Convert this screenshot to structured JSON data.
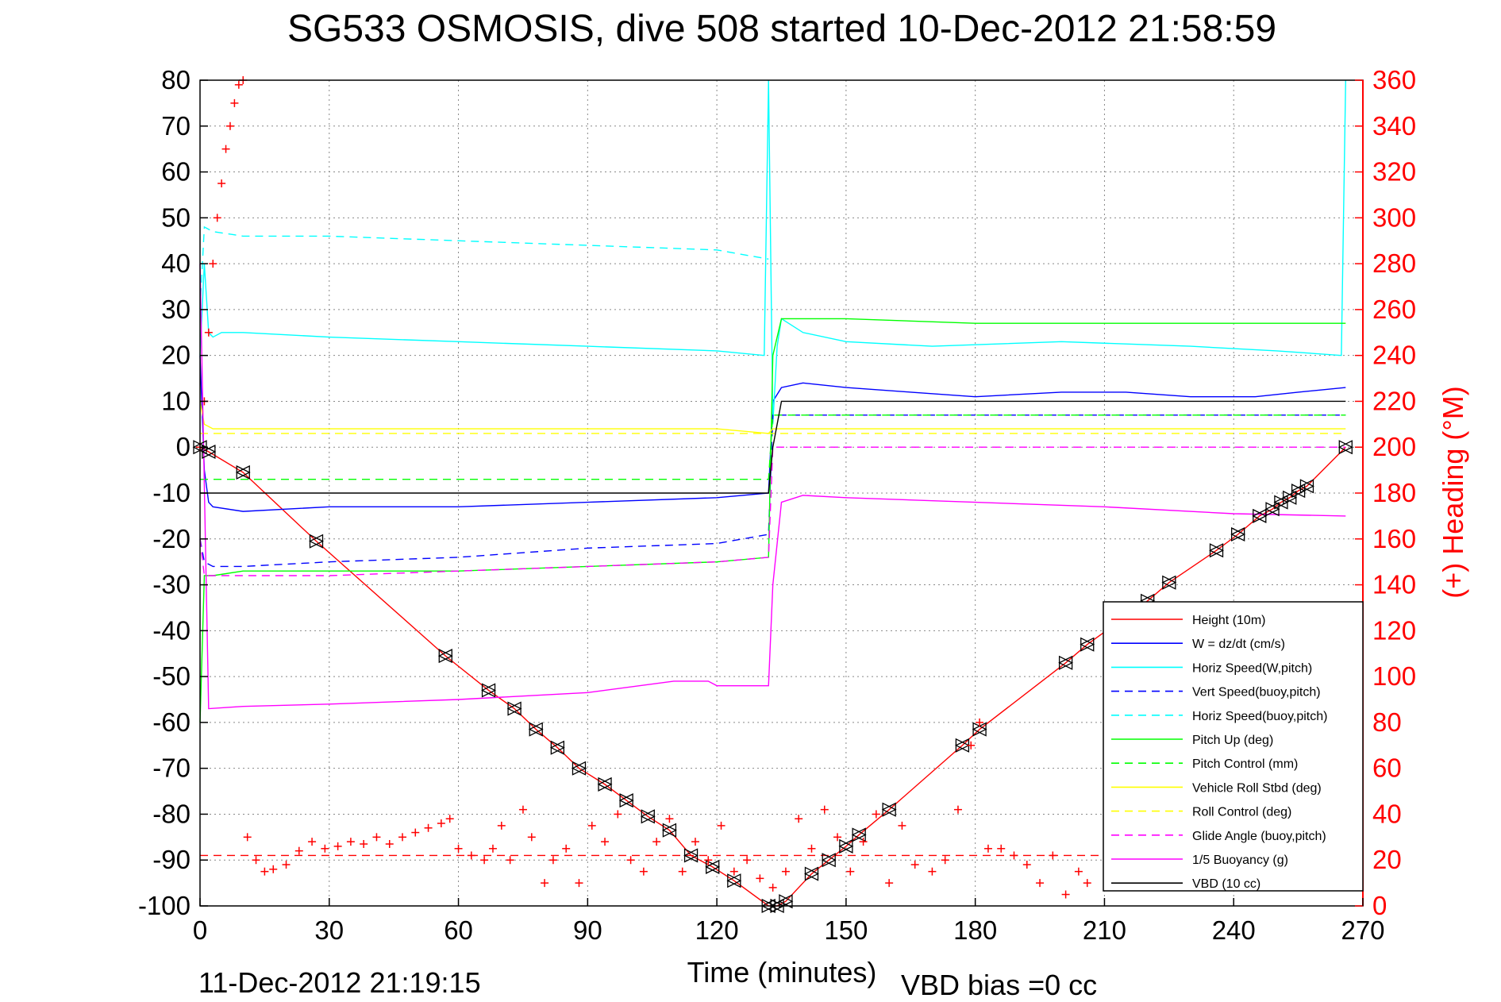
{
  "chart_data": {
    "type": "line",
    "title": "SG533 OSMOSIS, dive 508 started 10-Dec-2012 21:58:59",
    "xlabel": "Time (minutes)",
    "ylabel_right": "(+) Heading (°M)",
    "footer_left": "11-Dec-2012 21:19:15",
    "footer_right": "VBD bias =0 cc",
    "xlim": [
      0,
      270
    ],
    "ylim": [
      -100,
      80
    ],
    "ylim_right": [
      0,
      360
    ],
    "xticks": [
      "0",
      "30",
      "60",
      "90",
      "120",
      "150",
      "180",
      "210",
      "240",
      "270"
    ],
    "yticks": [
      "-100",
      "-90",
      "-80",
      "-70",
      "-60",
      "-50",
      "-40",
      "-30",
      "-20",
      "-10",
      "0",
      "10",
      "20",
      "30",
      "40",
      "50",
      "60",
      "70",
      "80"
    ],
    "yticks_right": [
      "0",
      "20",
      "40",
      "60",
      "80",
      "100",
      "120",
      "140",
      "160",
      "180",
      "200",
      "220",
      "240",
      "260",
      "280",
      "300",
      "320",
      "340",
      "360"
    ],
    "grid": true,
    "legend_position": "lower-right",
    "colors": {
      "red": "#ff0000",
      "blue": "#0000ff",
      "cyan": "#00ffff",
      "green": "#00ff00",
      "yellow": "#ffff00",
      "magenta": "#ff00ff",
      "black": "#000000"
    },
    "series": [
      {
        "name": "Height (10m)",
        "color": "red",
        "dash": "solid",
        "x": [
          0,
          2,
          10,
          27,
          57,
          67,
          73,
          78,
          83,
          88,
          94,
          99,
          104,
          109,
          114,
          119,
          124,
          132,
          134,
          136,
          142,
          146,
          150,
          153,
          160,
          177,
          181,
          201,
          206,
          220,
          225,
          236,
          241,
          246,
          249,
          251,
          253,
          255,
          257,
          266
        ],
        "y": [
          0,
          -1,
          -5.5,
          -20.5,
          -45.5,
          -53,
          -57,
          -61.5,
          -65.5,
          -70,
          -73.5,
          -77,
          -80.5,
          -83.5,
          -89,
          -91.5,
          -94.5,
          -100,
          -100,
          -99,
          -93,
          -90,
          -87,
          -84.5,
          -79,
          -65,
          -61.5,
          -47,
          -43,
          -33.5,
          -29.5,
          -22.5,
          -19,
          -15,
          -13.5,
          -12,
          -11,
          -9.5,
          -8.5,
          0
        ]
      },
      {
        "name": "W = dz/dt (cm/s)",
        "color": "blue",
        "dash": "solid",
        "x": [
          0,
          1,
          2,
          3,
          10,
          30,
          60,
          90,
          120,
          132,
          133,
          135,
          140,
          150,
          165,
          180,
          200,
          215,
          230,
          245,
          255,
          266
        ],
        "y": [
          20,
          -5,
          -12,
          -13,
          -14,
          -13,
          -13,
          -12,
          -11,
          -10,
          10,
          13,
          14,
          13,
          12,
          11,
          12,
          12,
          11,
          11,
          12,
          13
        ]
      },
      {
        "name": "Horiz Speed(W,pitch)",
        "color": "cyan",
        "dash": "solid",
        "x": [
          0,
          1,
          2,
          3,
          5,
          10,
          30,
          60,
          90,
          120,
          131,
          132,
          133,
          134,
          135,
          140,
          150,
          170,
          200,
          230,
          250,
          265,
          266
        ],
        "y": [
          20,
          40,
          25,
          24,
          25,
          25,
          24,
          23,
          22,
          21,
          20,
          80,
          5,
          22,
          28,
          25,
          23,
          22,
          23,
          22,
          21,
          20,
          80
        ]
      },
      {
        "name": "Vert Speed(buoy,pitch)",
        "color": "blue",
        "dash": "dash",
        "x": [
          0,
          1,
          3,
          10,
          30,
          60,
          90,
          120,
          132,
          133,
          135,
          266
        ],
        "y": [
          -20,
          -25,
          -26,
          -26,
          -25,
          -24,
          -22,
          -21,
          -19,
          7,
          7,
          7
        ]
      },
      {
        "name": "Horiz Speed(buoy,pitch)",
        "color": "cyan",
        "dash": "dash",
        "x": [
          0,
          1,
          3,
          10,
          30,
          60,
          90,
          120,
          132
        ],
        "y": [
          30,
          48,
          47,
          46,
          46,
          45,
          44,
          43,
          41
        ]
      },
      {
        "name": "Pitch Up (deg)",
        "color": "green",
        "dash": "solid",
        "x": [
          0,
          1,
          3,
          10,
          30,
          60,
          90,
          120,
          132,
          133,
          135,
          150,
          180,
          210,
          240,
          266
        ],
        "y": [
          -60,
          -28,
          -28,
          -27,
          -27,
          -27,
          -26,
          -25,
          -24,
          20,
          28,
          28,
          27,
          27,
          27,
          27
        ]
      },
      {
        "name": "Pitch Control (mm)",
        "color": "green",
        "dash": "dash",
        "x": [
          0,
          1,
          3,
          132,
          133,
          135,
          266
        ],
        "y": [
          -7,
          -7,
          -7,
          -7,
          7,
          7,
          7
        ]
      },
      {
        "name": "Vehicle Roll Stbd (deg)",
        "color": "yellow",
        "dash": "solid",
        "x": [
          0,
          1,
          3,
          10,
          30,
          60,
          90,
          120,
          132,
          133,
          150,
          180,
          210,
          240,
          266
        ],
        "y": [
          10,
          5,
          4,
          4,
          4,
          4,
          4,
          4,
          3,
          4,
          4,
          4,
          4,
          4,
          4
        ]
      },
      {
        "name": "Roll Control (deg)",
        "color": "yellow",
        "dash": "dash",
        "x": [
          0,
          3,
          132,
          133,
          266
        ],
        "y": [
          3,
          3,
          3,
          3,
          3
        ]
      },
      {
        "name": "Glide Angle (buoy,pitch)",
        "color": "magenta",
        "dash": "dash",
        "x": [
          0,
          1,
          3,
          10,
          30,
          60,
          90,
          120,
          132,
          133,
          135,
          266
        ],
        "y": [
          -20,
          -28,
          -28,
          -28,
          -28,
          -27,
          -26,
          -25,
          -24,
          0,
          0,
          0
        ]
      },
      {
        "name": "1/5 Buoyancy (g)",
        "color": "magenta",
        "dash": "solid",
        "x": [
          0,
          2,
          10,
          30,
          60,
          90,
          110,
          118,
          120,
          132,
          133,
          135,
          140,
          150,
          180,
          210,
          240,
          266
        ],
        "y": [
          40,
          -57,
          -56.5,
          -56,
          -55,
          -53.5,
          -51,
          -51,
          -52,
          -52,
          -30,
          -12,
          -10.5,
          -11,
          -12,
          -13,
          -14.5,
          -15
        ]
      },
      {
        "name": "VBD (10 cc)",
        "color": "black",
        "dash": "solid",
        "x": [
          0,
          1,
          2,
          132,
          133,
          135,
          266
        ],
        "y": [
          -10,
          -10,
          -10,
          -10,
          0,
          10,
          10
        ]
      }
    ],
    "heading": {
      "name": "(+) Heading (°M)",
      "color": "red",
      "marker": "+",
      "axis": "right",
      "x": [
        0,
        1,
        2,
        3,
        4,
        5,
        6,
        7,
        8,
        9,
        10,
        11,
        13,
        15,
        17,
        20,
        23,
        26,
        29,
        32,
        35,
        38,
        41,
        44,
        47,
        50,
        53,
        56,
        58,
        60,
        63,
        66,
        68,
        70,
        72,
        75,
        77,
        80,
        82,
        85,
        88,
        91,
        94,
        97,
        100,
        103,
        106,
        109,
        112,
        115,
        118,
        121,
        124,
        127,
        130,
        133,
        136,
        139,
        142,
        145,
        148,
        151,
        154,
        157,
        160,
        163,
        166,
        170,
        173,
        176,
        179,
        181,
        183,
        186,
        189,
        192,
        195,
        198,
        201,
        204,
        206,
        266
      ],
      "y": [
        200,
        220,
        250,
        280,
        300,
        315,
        330,
        340,
        350,
        358,
        360,
        30,
        20,
        15,
        16,
        18,
        24,
        28,
        25,
        26,
        28,
        27,
        30,
        27,
        30,
        32,
        34,
        36,
        38,
        25,
        22,
        20,
        25,
        35,
        20,
        42,
        30,
        10,
        20,
        25,
        10,
        35,
        28,
        40,
        20,
        15,
        28,
        38,
        15,
        28,
        20,
        35,
        15,
        20,
        12,
        8,
        15,
        38,
        25,
        42,
        30,
        15,
        28,
        40,
        10,
        35,
        18,
        15,
        20,
        42,
        70,
        80,
        25,
        25,
        22,
        18,
        10,
        22,
        5,
        15,
        10,
        25
      ]
    },
    "heading_line": {
      "color": "red",
      "dash": "dash",
      "y_left": -89
    }
  }
}
